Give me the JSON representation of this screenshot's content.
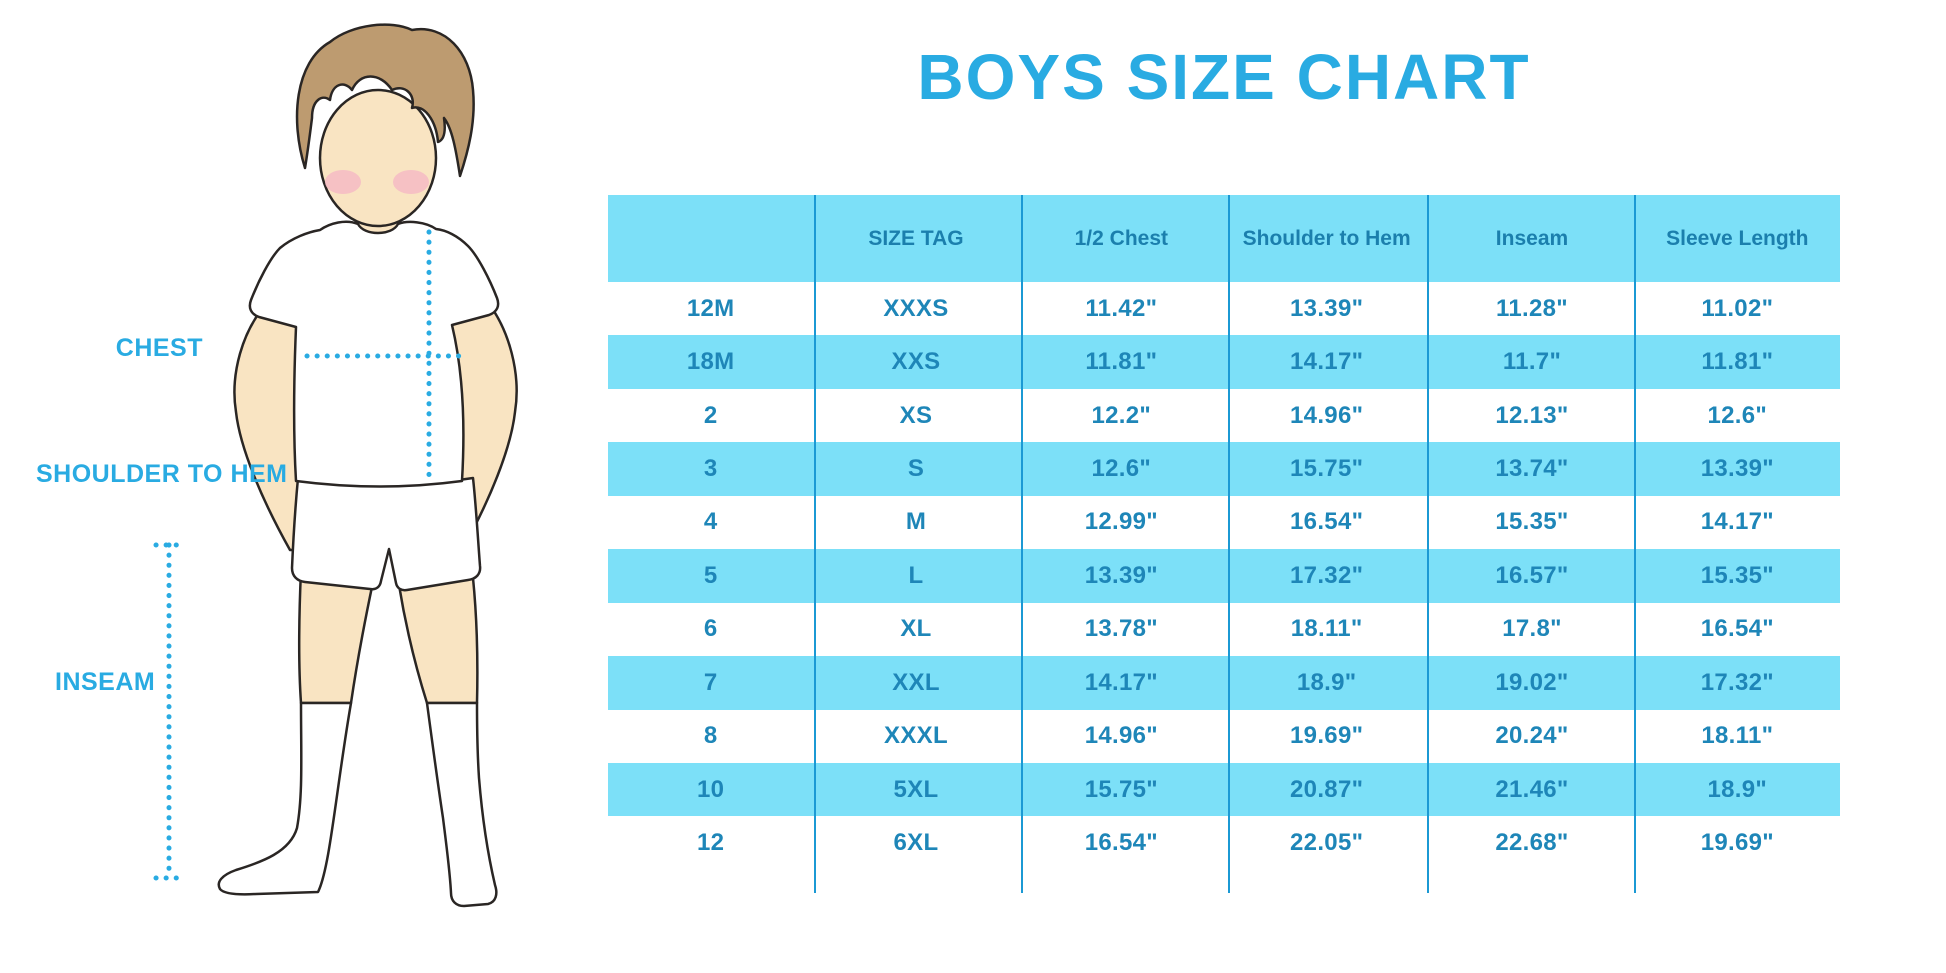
{
  "title": "BOYS SIZE CHART",
  "diagram": {
    "labels": {
      "chest": "CHEST",
      "shoulder_to_hem": "SHOULDER TO HEM",
      "inseam": "INSEAM"
    },
    "figure_description": "illustrated boy in white t-shirt, shorts and knee socks with dotted measurement guides"
  },
  "colors": {
    "accent_blue": "#29ABE2",
    "table_stripe": "#7CE0F8",
    "table_divider": "#1B99D4",
    "table_text": "#1E86B8",
    "header_text": "#1B7FAD",
    "skin": "#F9E4C2",
    "hair": "#BD9B70",
    "blush": "#F5B8C4"
  },
  "chart_data": {
    "type": "table",
    "title": "BOYS SIZE CHART",
    "columns": [
      "",
      "SIZE TAG",
      "1/2 Chest",
      "Shoulder to Hem",
      "Inseam",
      "Sleeve Length"
    ],
    "rows": [
      [
        "12M",
        "XXXS",
        "11.42\"",
        "13.39\"",
        "11.28\"",
        "11.02\""
      ],
      [
        "18M",
        "XXS",
        "11.81\"",
        "14.17\"",
        "11.7\"",
        "11.81\""
      ],
      [
        "2",
        "XS",
        "12.2\"",
        "14.96\"",
        "12.13\"",
        "12.6\""
      ],
      [
        "3",
        "S",
        "12.6\"",
        "15.75\"",
        "13.74\"",
        "13.39\""
      ],
      [
        "4",
        "M",
        "12.99\"",
        "16.54\"",
        "15.35\"",
        "14.17\""
      ],
      [
        "5",
        "L",
        "13.39\"",
        "17.32\"",
        "16.57\"",
        "15.35\""
      ],
      [
        "6",
        "XL",
        "13.78\"",
        "18.11\"",
        "17.8\"",
        "16.54\""
      ],
      [
        "7",
        "XXL",
        "14.17\"",
        "18.9\"",
        "19.02\"",
        "17.32\""
      ],
      [
        "8",
        "XXXL",
        "14.96\"",
        "19.69\"",
        "20.24\"",
        "18.11\""
      ],
      [
        "10",
        "5XL",
        "15.75\"",
        "20.87\"",
        "21.46\"",
        "18.9\""
      ],
      [
        "12",
        "6XL",
        "16.54\"",
        "22.05\"",
        "22.68\"",
        "19.69\""
      ]
    ],
    "striped_row_indices": [
      1,
      3,
      5,
      7,
      9
    ],
    "layout": {
      "stripe_style": "alternating light-cyan bands",
      "grid": "vertical column dividers only"
    }
  }
}
